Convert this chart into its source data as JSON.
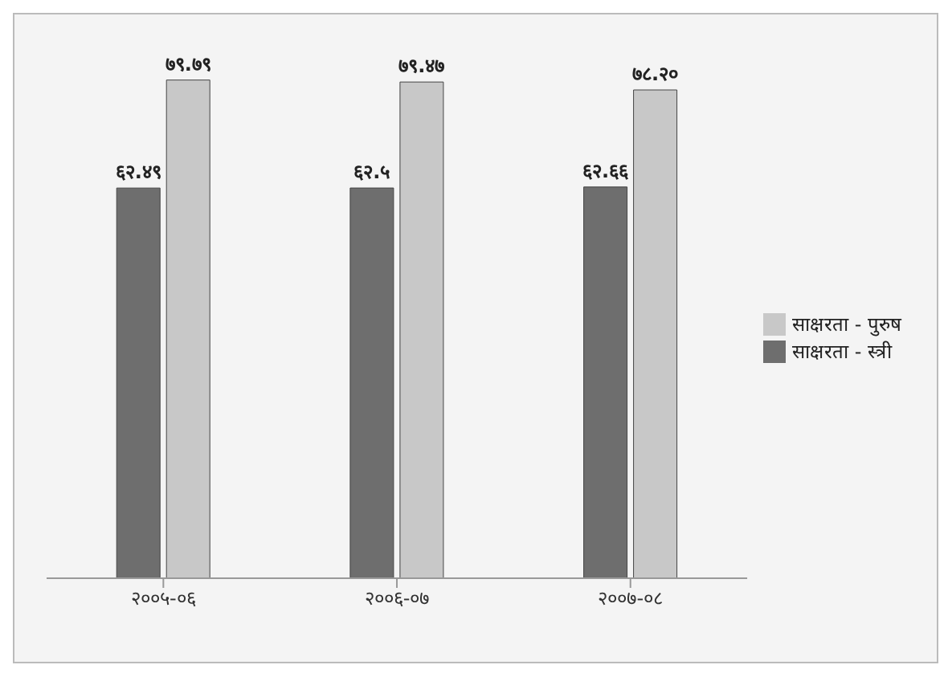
{
  "chart_data": {
    "type": "bar",
    "categories": [
      "२००५-०६",
      "२००६-०७",
      "२००७-०८"
    ],
    "series": [
      {
        "name": "साक्षरता - स्त्री",
        "color": "#6e6e6e",
        "values": [
          62.49,
          62.5,
          62.66
        ],
        "value_labels": [
          "६२.४९",
          "६२.५",
          "६२.६६"
        ]
      },
      {
        "name": "साक्षरता - पुरुष",
        "color": "#c8c8c8",
        "values": [
          79.79,
          79.47,
          78.2
        ],
        "value_labels": [
          "७९.७९",
          "७९.४७",
          "७८.२०"
        ]
      }
    ],
    "legend": "right",
    "grid": false
  }
}
